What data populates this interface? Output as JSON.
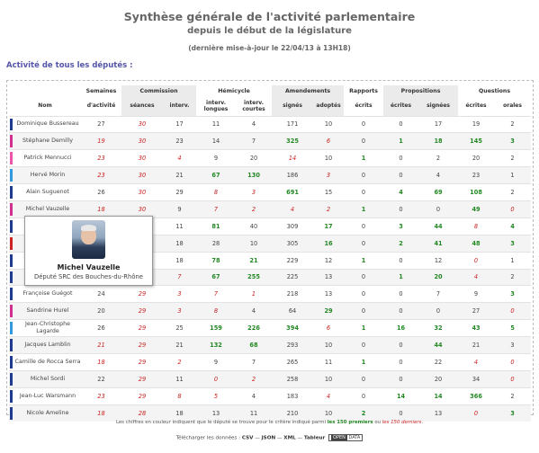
{
  "title": "Synthèse générale de l'activité parlementaire",
  "subtitle": "depuis le début de la législature",
  "update": "(dernière mise-à-jour le 22/04/13 à 13H18)",
  "section": "Activité de tous les députés :",
  "columns": {
    "groups": {
      "semaines": "Semaines",
      "commission": "Commission",
      "hemicycle": "Hémicycle",
      "amendements": "Amendements",
      "rapports": "Rapports",
      "propositions": "Propositions",
      "questions": "Questions"
    },
    "sub": {
      "nom": "Nom",
      "activite": "d'activité",
      "seances": "séances",
      "interv": "interv.",
      "longues": "interv. longues",
      "courtes": "interv. courtes",
      "signes": "signés",
      "adoptes": "adoptés",
      "ecrits": "écrits",
      "ecrites": "écrites",
      "signees": "signées",
      "q_ecrites": "écrites",
      "orales": "orales"
    }
  },
  "rows": [
    {
      "name": "Dominique Bussereau",
      "bar": "#1f3b8f",
      "cells": [
        "27",
        "30",
        "17",
        "11",
        "4",
        "171",
        "10",
        "0",
        "0",
        "17",
        "19",
        "2"
      ],
      "styles": [
        "",
        "r",
        "",
        "",
        "",
        "",
        "",
        "",
        "",
        "",
        "",
        ""
      ]
    },
    {
      "name": "Stéphane Demilly",
      "bar": "#d0318f",
      "cells": [
        "19",
        "30",
        "23",
        "14",
        "7",
        "325",
        "6",
        "0",
        "1",
        "18",
        "145",
        "3"
      ],
      "styles": [
        "r",
        "r",
        "",
        "",
        "",
        "g",
        "r",
        "",
        "g",
        "g",
        "g",
        "g"
      ]
    },
    {
      "name": "Patrick Mennucci",
      "bar": "#ee55aa",
      "cells": [
        "23",
        "30",
        "4",
        "9",
        "20",
        "14",
        "10",
        "1",
        "0",
        "2",
        "20",
        "2"
      ],
      "styles": [
        "r",
        "r",
        "r",
        "",
        "",
        "r",
        "",
        "g",
        "",
        "",
        "",
        ""
      ]
    },
    {
      "name": "Hervé Morin",
      "bar": "#3399dd",
      "cells": [
        "23",
        "30",
        "21",
        "67",
        "130",
        "186",
        "3",
        "0",
        "0",
        "4",
        "23",
        "1"
      ],
      "styles": [
        "r",
        "r",
        "",
        "g",
        "g",
        "",
        "r",
        "",
        "",
        "",
        "",
        ""
      ]
    },
    {
      "name": "Alain Suguenot",
      "bar": "#1f3b8f",
      "cells": [
        "26",
        "30",
        "29",
        "8",
        "3",
        "691",
        "15",
        "0",
        "4",
        "69",
        "108",
        "2"
      ],
      "styles": [
        "",
        "r",
        "",
        "r",
        "r",
        "g",
        "",
        "",
        "g",
        "g",
        "g",
        ""
      ]
    },
    {
      "name": "Michel Vauzelle",
      "bar": "#d0318f",
      "cells": [
        "18",
        "30",
        "9",
        "7",
        "2",
        "4",
        "2",
        "1",
        "0",
        "0",
        "49",
        "0"
      ],
      "styles": [
        "r",
        "r",
        "",
        "r",
        "r",
        "r",
        "r",
        "g",
        "",
        "",
        "g",
        "r"
      ]
    },
    {
      "name": "",
      "bar": "#1f3b8f",
      "cells": [
        "",
        "",
        "11",
        "81",
        "40",
        "309",
        "17",
        "0",
        "3",
        "44",
        "8",
        "4"
      ],
      "styles": [
        "",
        "",
        "",
        "g",
        "",
        "",
        "g",
        "",
        "g",
        "g",
        "r",
        "g"
      ]
    },
    {
      "name": "",
      "bar": "#cc2222",
      "cells": [
        "",
        "",
        "18",
        "28",
        "10",
        "305",
        "16",
        "0",
        "2",
        "41",
        "48",
        "3"
      ],
      "styles": [
        "",
        "",
        "",
        "",
        "",
        "",
        "g",
        "",
        "g",
        "g",
        "g",
        "g"
      ]
    },
    {
      "name": "",
      "bar": "#1f3b8f",
      "cells": [
        "",
        "",
        "18",
        "78",
        "21",
        "229",
        "12",
        "1",
        "0",
        "12",
        "0",
        "1"
      ],
      "styles": [
        "",
        "",
        "",
        "g",
        "g",
        "",
        "",
        "g",
        "",
        "",
        "r",
        ""
      ]
    },
    {
      "name": "",
      "bar": "#1f3b8f",
      "cells": [
        "",
        "",
        "7",
        "67",
        "255",
        "225",
        "13",
        "0",
        "1",
        "20",
        "4",
        "2"
      ],
      "styles": [
        "",
        "",
        "r",
        "g",
        "g",
        "",
        "",
        "",
        "g",
        "g",
        "r",
        ""
      ]
    },
    {
      "name": "Françoise Guégot",
      "bar": "#1f3b8f",
      "cells": [
        "24",
        "29",
        "3",
        "7",
        "1",
        "218",
        "13",
        "0",
        "0",
        "7",
        "9",
        "3"
      ],
      "styles": [
        "",
        "r",
        "r",
        "r",
        "r",
        "",
        "",
        "",
        "",
        "",
        "",
        "g"
      ]
    },
    {
      "name": "Sandrine Hurel",
      "bar": "#d0318f",
      "cells": [
        "20",
        "29",
        "3",
        "8",
        "4",
        "64",
        "29",
        "0",
        "0",
        "0",
        "27",
        "0"
      ],
      "styles": [
        "",
        "r",
        "r",
        "r",
        "",
        "",
        "g",
        "",
        "",
        "",
        "",
        "r"
      ]
    },
    {
      "name": "Jean-Christophe Lagarde",
      "bar": "#3399dd",
      "cells": [
        "26",
        "29",
        "25",
        "159",
        "226",
        "394",
        "6",
        "1",
        "16",
        "32",
        "43",
        "5"
      ],
      "styles": [
        "",
        "r",
        "",
        "g",
        "g",
        "g",
        "r",
        "g",
        "g",
        "g",
        "g",
        "g"
      ]
    },
    {
      "name": "Jacques Lamblin",
      "bar": "#1f3b8f",
      "cells": [
        "21",
        "29",
        "21",
        "132",
        "68",
        "293",
        "10",
        "0",
        "0",
        "44",
        "21",
        "3"
      ],
      "styles": [
        "r",
        "r",
        "",
        "g",
        "g",
        "",
        "",
        "",
        "",
        "g",
        "",
        ""
      ]
    },
    {
      "name": "Camille de Rocca Serra",
      "bar": "#1f3b8f",
      "cells": [
        "18",
        "29",
        "2",
        "9",
        "7",
        "265",
        "11",
        "1",
        "0",
        "22",
        "4",
        "0"
      ],
      "styles": [
        "r",
        "r",
        "r",
        "",
        "",
        "",
        "",
        "g",
        "",
        "",
        "r",
        "r"
      ]
    },
    {
      "name": "Michel Sordi",
      "bar": "#1f3b8f",
      "cells": [
        "22",
        "29",
        "11",
        "0",
        "2",
        "258",
        "10",
        "0",
        "0",
        "20",
        "34",
        "0"
      ],
      "styles": [
        "",
        "r",
        "",
        "r",
        "r",
        "",
        "",
        "",
        "",
        "",
        "",
        "r"
      ]
    },
    {
      "name": "Jean-Luc Warsmann",
      "bar": "#1f3b8f",
      "cells": [
        "23",
        "29",
        "8",
        "5",
        "4",
        "183",
        "4",
        "0",
        "14",
        "14",
        "366",
        "2"
      ],
      "styles": [
        "r",
        "r",
        "r",
        "r",
        "",
        "",
        "r",
        "",
        "g",
        "g",
        "g",
        ""
      ]
    },
    {
      "name": "Nicole Ameline",
      "bar": "#1f3b8f",
      "cells": [
        "18",
        "28",
        "18",
        "13",
        "11",
        "210",
        "10",
        "2",
        "0",
        "13",
        "0",
        "3"
      ],
      "styles": [
        "r",
        "r",
        "",
        "",
        "",
        "",
        "",
        "g",
        "",
        "",
        "r",
        "g"
      ]
    }
  ],
  "popup": {
    "name": "Michel Vauzelle",
    "role": "Député SRC des Bouches-du-Rhône",
    "photo_icon": "deputy-portrait"
  },
  "note": {
    "prefix": "Les chiffres en couleur indiquent que le député se trouve pour le critère indiqué parmi",
    "best": "les 150 premiers",
    "joiner": "ou",
    "worst": "les 150 derniers",
    "suffix": "."
  },
  "download": {
    "label": "Télécharger les données :",
    "csv": "CSV",
    "sep1": "—",
    "json": "JSON",
    "sep2": "—",
    "xml": "XML",
    "sep3": "—",
    "tableur": "Tableur",
    "badge_open": "OPEN",
    "badge_data": "DATA"
  },
  "colors": {
    "good": "#228822",
    "bad": "#cc2222",
    "ump": "#1f3b8f",
    "src": "#d0318f",
    "udi": "#3399dd"
  }
}
